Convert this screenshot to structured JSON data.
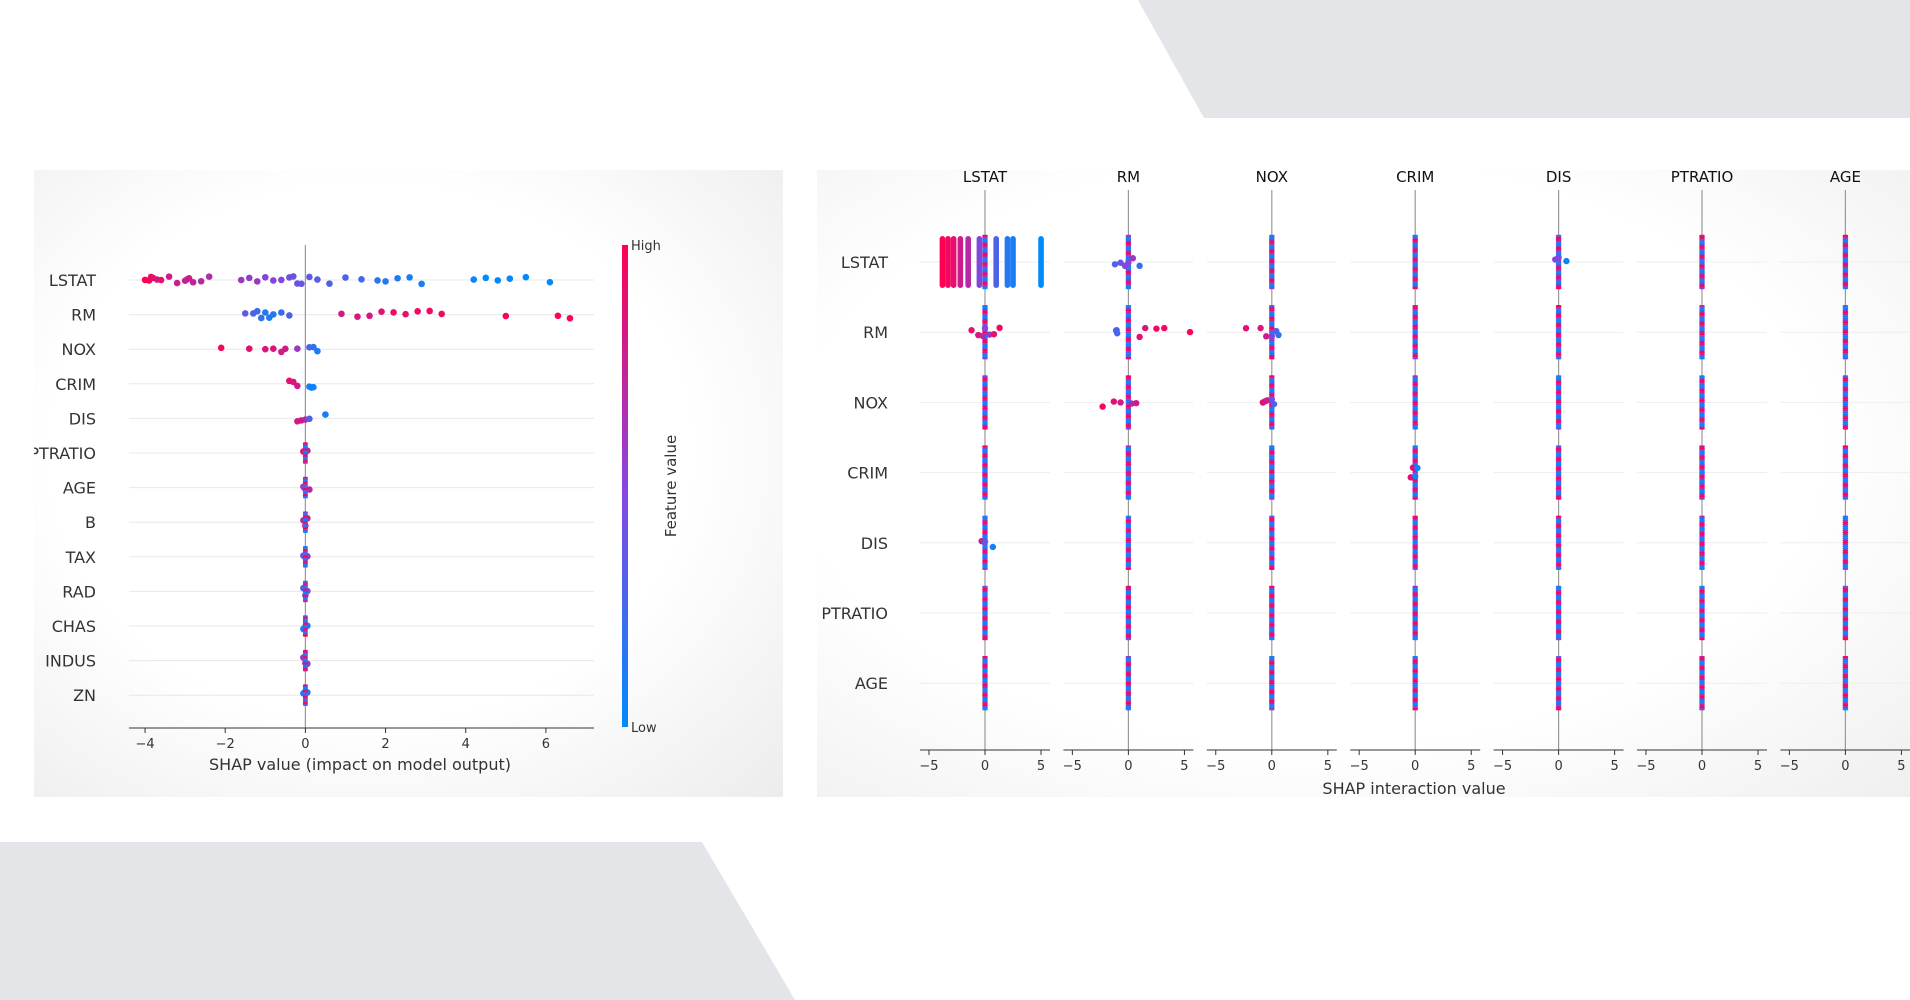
{
  "chart_data": [
    {
      "type": "scatter",
      "subtype": "beeswarm",
      "title": "",
      "xlabel": "SHAP value (impact on model output)",
      "xlim": [
        -4.4,
        7.2
      ],
      "xticks": [
        -4,
        -2,
        0,
        2,
        4,
        6
      ],
      "xtick_labels": [
        "−4",
        "−2",
        "0",
        "2",
        "4",
        "6"
      ],
      "features": [
        "LSTAT",
        "RM",
        "NOX",
        "CRIM",
        "DIS",
        "PTRATIO",
        "AGE",
        "B",
        "TAX",
        "RAD",
        "CHAS",
        "INDUS",
        "ZN"
      ],
      "colorbar": {
        "label": "Feature value",
        "high_label": "High",
        "low_label": "Low",
        "high_color": "#ff0052",
        "low_color": "#008bfb"
      },
      "feature_points": [
        {
          "feature": "LSTAT",
          "points": [
            [
              -4.0,
              1
            ],
            [
              -3.9,
              1
            ],
            [
              -3.85,
              0.95
            ],
            [
              -3.8,
              0.9
            ],
            [
              -3.7,
              0.85
            ],
            [
              -3.6,
              0.9
            ],
            [
              -3.4,
              0.8
            ],
            [
              -3.2,
              0.8
            ],
            [
              -3.0,
              0.8
            ],
            [
              -2.95,
              0.75
            ],
            [
              -2.9,
              0.8
            ],
            [
              -2.8,
              0.75
            ],
            [
              -2.6,
              0.7
            ],
            [
              -2.4,
              0.7
            ],
            [
              -1.6,
              0.6
            ],
            [
              -1.4,
              0.55
            ],
            [
              -1.2,
              0.6
            ],
            [
              -1.0,
              0.5
            ],
            [
              -0.8,
              0.5
            ],
            [
              -0.6,
              0.5
            ],
            [
              -0.4,
              0.45
            ],
            [
              -0.3,
              0.4
            ],
            [
              -0.2,
              0.4
            ],
            [
              -0.1,
              0.4
            ],
            [
              0.1,
              0.35
            ],
            [
              0.3,
              0.35
            ],
            [
              0.6,
              0.3
            ],
            [
              1.0,
              0.3
            ],
            [
              1.4,
              0.25
            ],
            [
              1.8,
              0.15
            ],
            [
              2.0,
              0.15
            ],
            [
              2.3,
              0.1
            ],
            [
              2.6,
              0.1
            ],
            [
              2.9,
              0.1
            ],
            [
              4.2,
              0.05
            ],
            [
              4.5,
              0.02
            ],
            [
              4.8,
              0.02
            ],
            [
              5.1,
              0.02
            ],
            [
              5.5,
              0.02
            ],
            [
              6.1,
              0.02
            ]
          ]
        },
        {
          "feature": "RM",
          "points": [
            [
              -1.5,
              0.35
            ],
            [
              -1.3,
              0.3
            ],
            [
              -1.2,
              0.25
            ],
            [
              -1.1,
              0.2
            ],
            [
              -1.0,
              0.15
            ],
            [
              -0.9,
              0.1
            ],
            [
              -0.8,
              0.15
            ],
            [
              -0.6,
              0.2
            ],
            [
              -0.4,
              0.3
            ],
            [
              0.9,
              0.8
            ],
            [
              1.3,
              0.85
            ],
            [
              1.6,
              0.85
            ],
            [
              1.9,
              0.9
            ],
            [
              2.2,
              0.9
            ],
            [
              2.5,
              0.9
            ],
            [
              2.8,
              0.95
            ],
            [
              3.1,
              0.95
            ],
            [
              3.4,
              0.95
            ],
            [
              5.0,
              1
            ],
            [
              6.3,
              1
            ],
            [
              6.6,
              1
            ]
          ]
        },
        {
          "feature": "NOX",
          "points": [
            [
              -2.1,
              0.95
            ],
            [
              -1.4,
              0.9
            ],
            [
              -1.0,
              0.85
            ],
            [
              -0.8,
              0.85
            ],
            [
              -0.6,
              0.8
            ],
            [
              -0.5,
              0.8
            ],
            [
              -0.2,
              0.6
            ],
            [
              0.1,
              0.3
            ],
            [
              0.2,
              0.2
            ],
            [
              0.3,
              0.1
            ]
          ]
        },
        {
          "feature": "CRIM",
          "points": [
            [
              -0.4,
              0.9
            ],
            [
              -0.3,
              0.85
            ],
            [
              -0.2,
              0.8
            ],
            [
              0.1,
              0.1
            ],
            [
              0.15,
              0.05
            ],
            [
              0.2,
              0.05
            ]
          ]
        },
        {
          "feature": "DIS",
          "points": [
            [
              -0.2,
              0.8
            ],
            [
              -0.1,
              0.85
            ],
            [
              0.0,
              0.7
            ],
            [
              0.1,
              0.3
            ],
            [
              0.5,
              0.1
            ]
          ]
        },
        {
          "feature": "PTRATIO",
          "points": [
            [
              -0.05,
              0.85
            ],
            [
              0.0,
              0.8
            ],
            [
              0.05,
              0.75
            ]
          ]
        },
        {
          "feature": "AGE",
          "points": [
            [
              -0.05,
              0.6
            ],
            [
              0.0,
              0.5
            ],
            [
              0.1,
              0.7
            ]
          ]
        },
        {
          "feature": "B",
          "points": [
            [
              -0.05,
              0.7
            ],
            [
              0.0,
              0.8
            ],
            [
              0.05,
              0.75
            ]
          ]
        },
        {
          "feature": "TAX",
          "points": [
            [
              -0.05,
              0.4
            ],
            [
              0.0,
              0.5
            ],
            [
              0.05,
              0.6
            ]
          ]
        },
        {
          "feature": "RAD",
          "points": [
            [
              -0.05,
              0.3
            ],
            [
              0.0,
              0.4
            ],
            [
              0.05,
              0.5
            ]
          ]
        },
        {
          "feature": "CHAS",
          "points": [
            [
              -0.05,
              0.1
            ],
            [
              0.0,
              0.05
            ],
            [
              0.05,
              0.1
            ]
          ]
        },
        {
          "feature": "INDUS",
          "points": [
            [
              -0.05,
              0.6
            ],
            [
              0.0,
              0.7
            ],
            [
              0.05,
              0.5
            ]
          ]
        },
        {
          "feature": "ZN",
          "points": [
            [
              -0.05,
              0.2
            ],
            [
              0.0,
              0.1
            ],
            [
              0.05,
              0.2
            ]
          ]
        }
      ]
    },
    {
      "type": "scatter",
      "subtype": "beeswarm-interaction-matrix",
      "xlabel": "SHAP interaction value",
      "xlim": [
        -5.8,
        5.8
      ],
      "xticks": [
        -5,
        0,
        5
      ],
      "xtick_labels": [
        "−5",
        "0",
        "5"
      ],
      "columns": [
        "LSTAT",
        "RM",
        "NOX",
        "CRIM",
        "DIS",
        "PTRATIO",
        "AGE"
      ],
      "rows": [
        "LSTAT",
        "RM",
        "NOX",
        "CRIM",
        "DIS",
        "PTRATIO",
        "AGE"
      ],
      "cells": [
        {
          "row": "LSTAT",
          "col": "LSTAT",
          "points": [
            [
              -3.8,
              1
            ],
            [
              -3.3,
              0.95
            ],
            [
              -2.8,
              0.9
            ],
            [
              -2.2,
              0.8
            ],
            [
              -1.5,
              0.7
            ],
            [
              -0.5,
              0.5
            ],
            [
              1.0,
              0.3
            ],
            [
              2.0,
              0.15
            ],
            [
              2.5,
              0.1
            ],
            [
              5.0,
              0
            ]
          ]
        },
        {
          "row": "LSTAT",
          "col": "RM",
          "points": [
            [
              -1.2,
              0.3
            ],
            [
              -0.7,
              0.4
            ],
            [
              -0.3,
              0.5
            ],
            [
              0.0,
              0.5
            ],
            [
              0.4,
              0.6
            ],
            [
              1.0,
              0.2
            ]
          ]
        },
        {
          "row": "LSTAT",
          "col": "DIS",
          "points": [
            [
              -0.3,
              0.5
            ],
            [
              0.0,
              0.5
            ],
            [
              0.7,
              0.05
            ]
          ]
        },
        {
          "row": "RM",
          "col": "LSTAT",
          "points": [
            [
              -1.2,
              0.9
            ],
            [
              -0.6,
              0.85
            ],
            [
              -0.2,
              0.7
            ],
            [
              0.0,
              0.5
            ],
            [
              0.4,
              0.6
            ],
            [
              0.8,
              0.9
            ],
            [
              1.3,
              0.95
            ]
          ]
        },
        {
          "row": "RM",
          "col": "RM",
          "points": [
            [
              -1.1,
              0.2
            ],
            [
              -1.05,
              0.25
            ],
            [
              -1.0,
              0.3
            ],
            [
              1.0,
              0.9
            ],
            [
              1.5,
              0.85
            ],
            [
              2.5,
              0.95
            ],
            [
              3.2,
              0.95
            ],
            [
              5.5,
              1
            ]
          ]
        },
        {
          "row": "RM",
          "col": "NOX",
          "points": [
            [
              -2.3,
              0.9
            ],
            [
              -1.0,
              0.85
            ],
            [
              -0.5,
              0.8
            ],
            [
              0.0,
              0.5
            ],
            [
              0.4,
              0.3
            ],
            [
              0.6,
              0.2
            ]
          ]
        },
        {
          "row": "NOX",
          "col": "RM",
          "points": [
            [
              -2.3,
              0.95
            ],
            [
              -1.3,
              0.9
            ],
            [
              -0.7,
              0.8
            ],
            [
              0.3,
              0.7
            ],
            [
              0.7,
              0.8
            ]
          ]
        },
        {
          "row": "NOX",
          "col": "NOX",
          "points": [
            [
              -0.8,
              0.9
            ],
            [
              -0.6,
              0.85
            ],
            [
              -0.4,
              0.8
            ],
            [
              0.0,
              0.4
            ],
            [
              0.2,
              0.3
            ]
          ]
        },
        {
          "row": "CRIM",
          "col": "CRIM",
          "points": [
            [
              -0.4,
              0.9
            ],
            [
              -0.2,
              0.85
            ],
            [
              0.0,
              0.1
            ],
            [
              0.2,
              0.05
            ]
          ]
        },
        {
          "row": "DIS",
          "col": "LSTAT",
          "points": [
            [
              -0.3,
              0.8
            ],
            [
              0.0,
              0.4
            ],
            [
              0.7,
              0.05
            ]
          ]
        }
      ]
    }
  ]
}
